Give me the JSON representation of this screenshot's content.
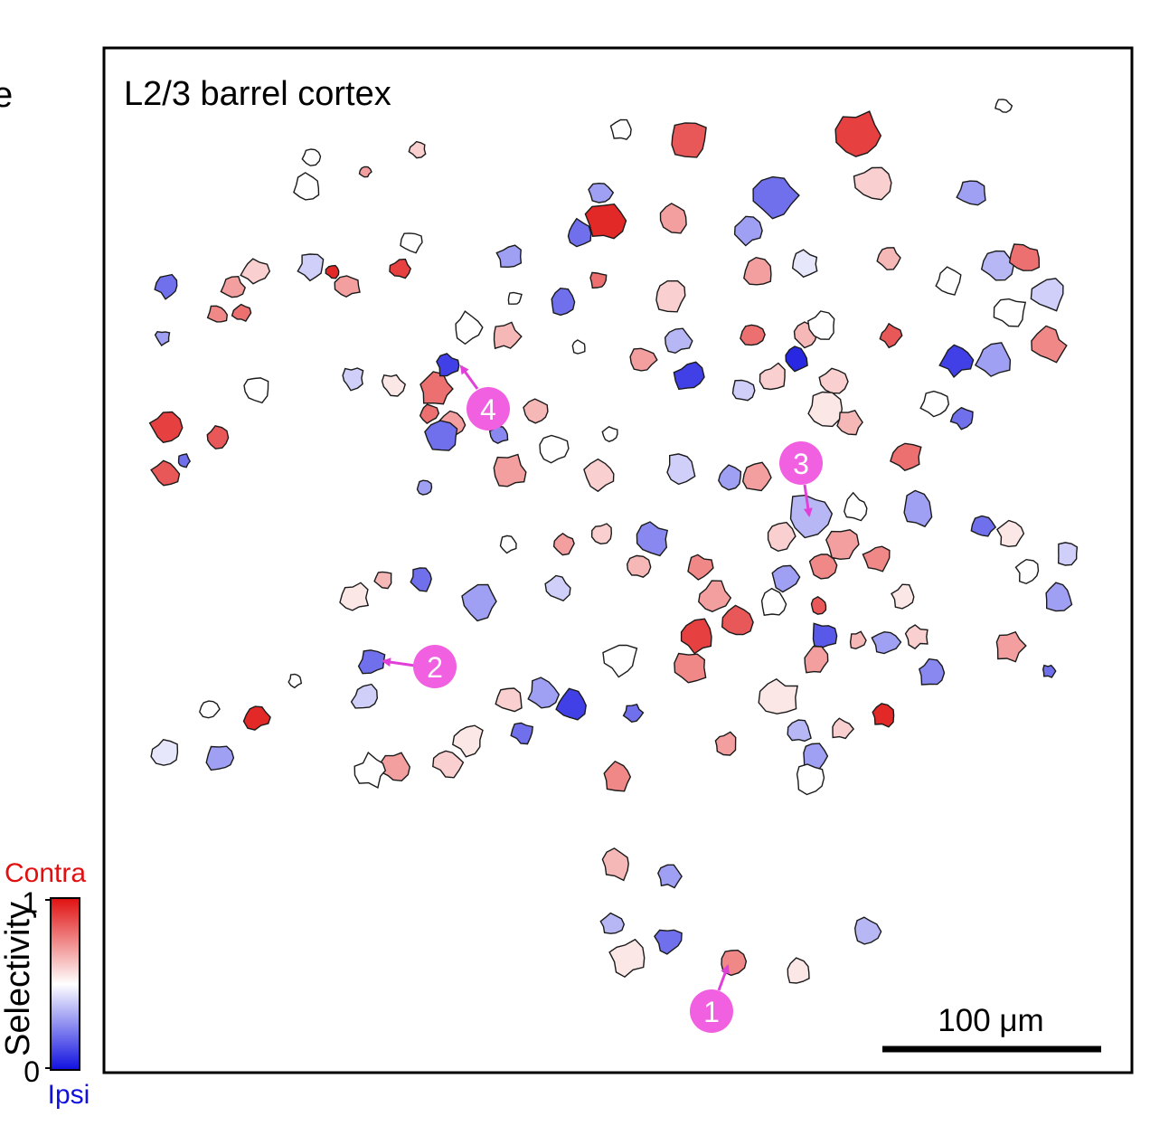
{
  "panel": {
    "title": "L2/3 barrel cortex",
    "scale_bar_label": "100 μm",
    "left_edge_glyph": "e",
    "colorbar": {
      "axis_label": "Selectivity",
      "top_label": "Contra",
      "bottom_label": "Ipsi",
      "max_tick": "1",
      "min_tick": "0",
      "colors": {
        "low": "#1010e0",
        "mid": "#ffffff",
        "high": "#e01010"
      }
    }
  },
  "callouts": [
    {
      "label": "1"
    },
    {
      "label": "2"
    },
    {
      "label": "3"
    },
    {
      "label": "4"
    }
  ],
  "callout_color": "#f060e0",
  "arrow_color": "#e040d8",
  "cells": [
    {
      "v": 0.5
    },
    {
      "v": 0.5
    },
    {
      "v": 0.6
    },
    {
      "v": 0.7
    },
    {
      "v": 0.5
    },
    {
      "v": 0.9
    },
    {
      "v": 0.95
    },
    {
      "v": 0.7
    },
    {
      "v": 0.4
    },
    {
      "v": 0.6
    },
    {
      "v": 0.7
    },
    {
      "v": 0.75
    },
    {
      "v": 0.8
    },
    {
      "v": 0.2
    },
    {
      "v": 0.3
    },
    {
      "v": 0.9
    },
    {
      "v": 0.85
    },
    {
      "v": 0.2
    },
    {
      "v": 0.85
    },
    {
      "v": 0.5
    },
    {
      "v": 0.4
    },
    {
      "v": 0.55
    },
    {
      "v": 0.8
    },
    {
      "v": 0.7
    },
    {
      "v": 0.1
    },
    {
      "v": 0.3
    },
    {
      "v": 0.5
    },
    {
      "v": 0.65
    },
    {
      "v": 0.5
    },
    {
      "v": 0.2
    },
    {
      "v": 0.5
    },
    {
      "v": 0.8
    },
    {
      "v": 0.5
    },
    {
      "v": 0.3
    },
    {
      "v": 0.95
    },
    {
      "v": 0.2
    },
    {
      "v": 0.6
    },
    {
      "v": 0.85
    },
    {
      "v": 0.7
    },
    {
      "v": 0.35
    },
    {
      "v": 0.7
    },
    {
      "v": 0.1
    },
    {
      "v": 0.5
    },
    {
      "v": 0.6
    },
    {
      "v": 0.4
    },
    {
      "v": 0.3
    },
    {
      "v": 0.7
    },
    {
      "v": 0.4
    },
    {
      "v": 0.6
    },
    {
      "v": 0.05
    },
    {
      "v": 0.65
    },
    {
      "v": 0.5
    },
    {
      "v": 0.6
    },
    {
      "v": 0.55
    },
    {
      "v": 0.65
    },
    {
      "v": 0.8
    },
    {
      "v": 0.7
    },
    {
      "v": 0.45
    },
    {
      "v": 0.3
    },
    {
      "v": 0.2
    },
    {
      "v": 0.9
    },
    {
      "v": 0.6
    },
    {
      "v": 0.3
    },
    {
      "v": 0.5
    },
    {
      "v": 0.85
    },
    {
      "v": 0.65
    },
    {
      "v": 0.35
    },
    {
      "v": 0.8
    },
    {
      "v": 0.4
    },
    {
      "v": 0.5
    },
    {
      "v": 0.75
    },
    {
      "v": 0.1
    },
    {
      "v": 0.3
    },
    {
      "v": 0.5
    },
    {
      "v": 0.2
    },
    {
      "v": 0.8
    },
    {
      "v": 0.5
    },
    {
      "v": 0.2
    },
    {
      "v": 0.55
    },
    {
      "v": 0.5
    },
    {
      "v": 0.4
    },
    {
      "v": 0.3
    },
    {
      "v": 0.7
    },
    {
      "v": 0.2
    },
    {
      "v": 0.25
    },
    {
      "v": 0.95
    },
    {
      "v": 0.6
    },
    {
      "v": 0.55
    },
    {
      "v": 0.3
    },
    {
      "v": 0.65
    },
    {
      "v": 0.15
    },
    {
      "v": 0.7
    },
    {
      "v": 0.5
    },
    {
      "v": 0.85
    },
    {
      "v": 0.3
    },
    {
      "v": 0.75
    },
    {
      "v": 0.7
    },
    {
      "v": 0.75
    },
    {
      "v": 0.5
    },
    {
      "v": 0.3
    },
    {
      "v": 0.35
    },
    {
      "v": 0.6
    },
    {
      "v": 0.5
    },
    {
      "v": 0.7
    },
    {
      "v": 0.25
    },
    {
      "v": 0.65
    },
    {
      "v": 0.2
    },
    {
      "v": 0.8
    },
    {
      "v": 0.3
    },
    {
      "v": 0.5
    },
    {
      "v": 0.7
    },
    {
      "v": 0.6
    },
    {
      "v": 0.25
    },
    {
      "v": 0.65
    },
    {
      "v": 0.4
    },
    {
      "v": 0.3
    },
    {
      "v": 0.2
    },
    {
      "v": 0.65
    },
    {
      "v": 0.55
    },
    {
      "v": 0.75
    },
    {
      "v": 0.7
    },
    {
      "v": 0.85
    },
    {
      "v": 0.9
    },
    {
      "v": 0.75
    },
    {
      "v": 0.5
    },
    {
      "v": 0.2
    },
    {
      "v": 0.3
    },
    {
      "v": 0.1
    },
    {
      "v": 0.6
    },
    {
      "v": 0.2
    },
    {
      "v": 0.55
    },
    {
      "v": 0.6
    },
    {
      "v": 0.7
    },
    {
      "v": 0.5
    },
    {
      "v": 0.4
    },
    {
      "v": 0.2
    },
    {
      "v": 0.5
    },
    {
      "v": 0.95
    },
    {
      "v": 0.5
    },
    {
      "v": 0.3
    },
    {
      "v": 0.45
    },
    {
      "v": 0.55
    },
    {
      "v": 0.35
    },
    {
      "v": 0.6
    },
    {
      "v": 0.3
    },
    {
      "v": 0.5
    },
    {
      "v": 0.7
    },
    {
      "v": 0.75
    },
    {
      "v": 0.65
    },
    {
      "v": 0.3
    },
    {
      "v": 0.35
    },
    {
      "v": 0.55
    },
    {
      "v": 0.2
    },
    {
      "v": 0.75
    },
    {
      "v": 0.55
    },
    {
      "v": 0.35
    },
    {
      "v": 0.3
    },
    {
      "v": 0.5
    },
    {
      "v": 0.2
    },
    {
      "v": 0.8
    },
    {
      "v": 0.7
    },
    {
      "v": 0.5
    },
    {
      "v": 0.25
    },
    {
      "v": 0.4
    },
    {
      "v": 0.7
    },
    {
      "v": 0.45
    },
    {
      "v": 0.6
    },
    {
      "v": 0.5
    }
  ]
}
